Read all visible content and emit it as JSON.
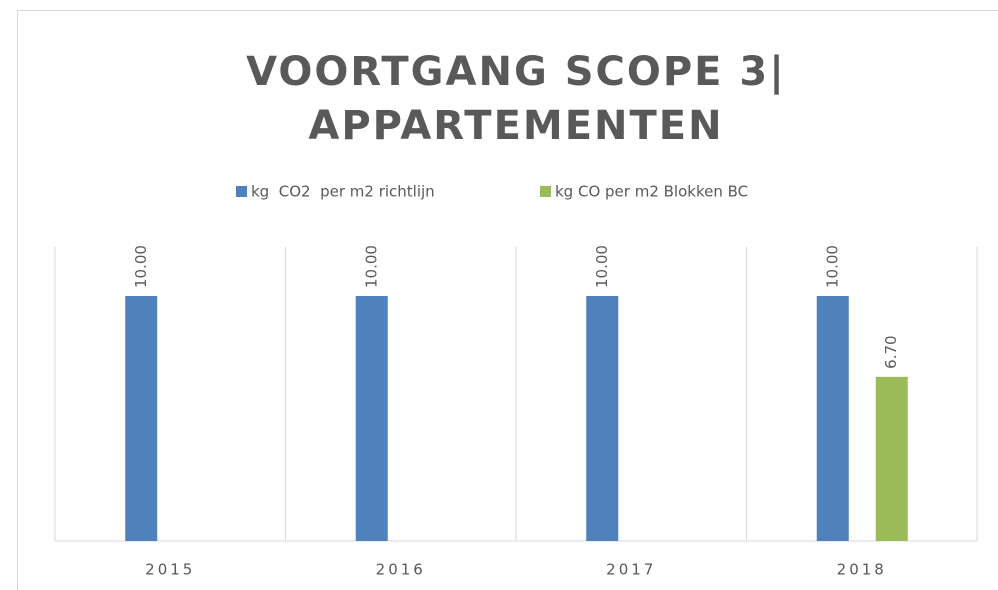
{
  "chart_data": {
    "type": "bar",
    "title": [
      "VOORTGANG SCOPE 3|",
      "APPARTEMENTEN"
    ],
    "categories": [
      "2015",
      "2016",
      "2017",
      "2018"
    ],
    "series": [
      {
        "name": "kg  CO2  per m2 richtlijn",
        "color": "#4f81bd",
        "values": [
          10,
          10,
          10,
          10
        ],
        "value_labels": [
          "10.00",
          "10.00",
          "10.00",
          "10.00"
        ]
      },
      {
        "name": "kg CO per m2 Blokken BC",
        "color": "#9bbb59",
        "values": [
          null,
          null,
          null,
          6.7
        ],
        "value_labels": [
          null,
          null,
          null,
          "6.70"
        ]
      }
    ],
    "ylim": [
      0,
      12
    ]
  }
}
